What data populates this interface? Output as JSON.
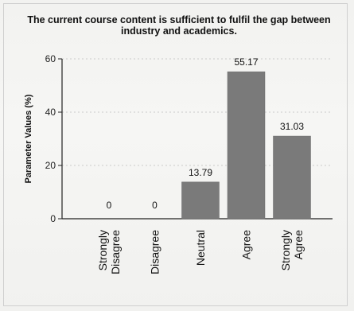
{
  "chart_data": {
    "type": "bar",
    "title": "The current course content is sufficient to fulfil the gap between industry and academics.",
    "xlabel": "",
    "ylabel": "Parameter Values (%)",
    "categories": [
      [
        "Strongly",
        "Disagree"
      ],
      [
        "Disagree"
      ],
      [
        "Neutral"
      ],
      [
        "Agree"
      ],
      [
        "Strongly",
        "Agree"
      ]
    ],
    "values": [
      0,
      0,
      13.79,
      55.17,
      31.03
    ],
    "data_labels": [
      "0",
      "0",
      "13.79",
      "55.17",
      "31.03"
    ],
    "ylim": [
      0,
      60
    ],
    "yticks": [
      0,
      20,
      40,
      60
    ],
    "grid": "horizontal dashed",
    "bar_color": "#7a7a7a"
  }
}
